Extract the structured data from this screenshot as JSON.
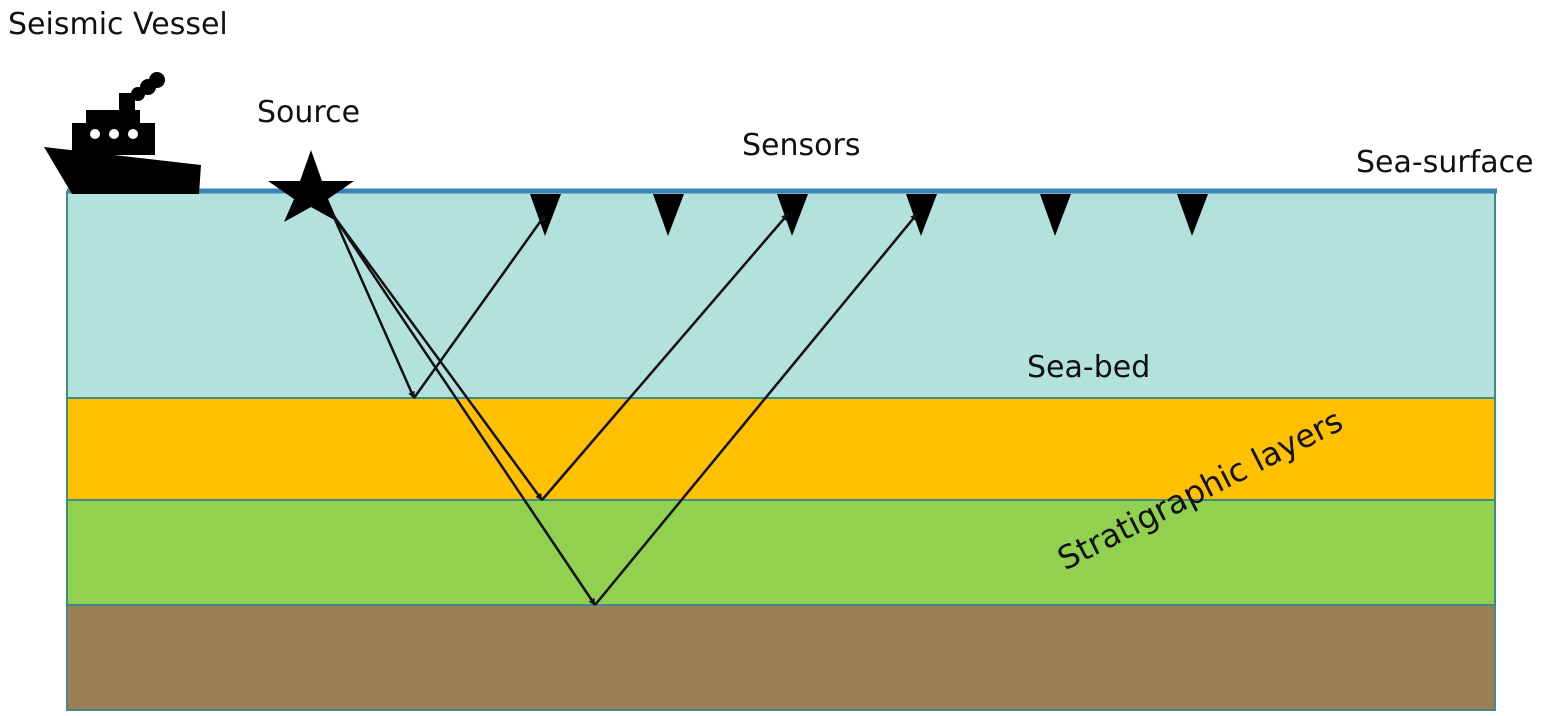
{
  "labels": {
    "vessel": "Seismic Vessel",
    "source": "Source",
    "sensors": "Sensors",
    "sea_surface": "Sea-surface",
    "sea_bed": "Sea-bed",
    "stratigraphic": "Stratigraphic layers"
  },
  "colors": {
    "sea_surface_line": "#3d84b6",
    "water": "#b3e1de",
    "layer_1": "#ffc000",
    "layer_2": "#92d050",
    "layer_3": "#9c7f57",
    "boundary": "#3c8c8a",
    "ray": "#111111",
    "icon": "#000000"
  },
  "icons": [
    "ship-icon",
    "star-icon",
    "sensor-triangle-icon"
  ],
  "sensor_count": 6,
  "ray_paths": [
    {
      "reflects_at": "Sea-bed",
      "to_sensor": 1
    },
    {
      "reflects_at": "layer 1 base",
      "to_sensor": 3
    },
    {
      "reflects_at": "layer 2 base",
      "to_sensor": 4
    }
  ]
}
